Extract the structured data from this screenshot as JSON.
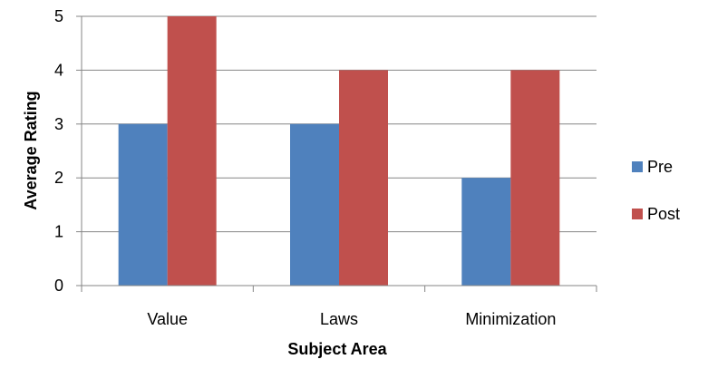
{
  "chart_data": {
    "type": "bar",
    "title": "",
    "xlabel": "Subject Area",
    "ylabel": "Average Rating",
    "categories": [
      "Value",
      "Laws",
      "Minimization"
    ],
    "series": [
      {
        "name": "Pre",
        "color": "#4f81bd",
        "values": [
          3,
          3,
          2
        ]
      },
      {
        "name": "Post",
        "color": "#c0504d",
        "values": [
          5,
          4,
          4
        ]
      }
    ],
    "ylim": [
      0,
      5
    ],
    "yticks": [
      "0",
      "1",
      "2",
      "3",
      "4",
      "5"
    ],
    "grid": true,
    "legend_position": "right"
  }
}
